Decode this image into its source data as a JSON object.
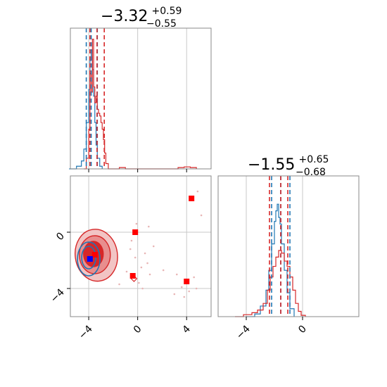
{
  "chart_data": {
    "type": "corner",
    "colors": {
      "blue": "#1f77b4",
      "red": "#d62728",
      "point_red": "#ff0000",
      "point_blue": "#0000ff",
      "grid": "#c8c8c8",
      "frame": "#888888"
    },
    "params": [
      {
        "title": {
          "main": "−3.32",
          "sup": "+0.59",
          "sub": "−0.55"
        },
        "range": [
          -5.5,
          6.0
        ],
        "quantiles_blue": [
          -4.2,
          -3.8,
          -3.3
        ],
        "quantiles_red": [
          -3.9,
          -3.32,
          -2.73
        ]
      },
      {
        "title": {
          "main": "−1.55",
          "sup": "+0.65",
          "sub": "−0.68"
        },
        "range": [
          -6.0,
          4.0
        ],
        "quantiles_blue": [
          -2.2,
          -1.55,
          -0.9
        ],
        "quantiles_red": [
          -2.35,
          -1.55,
          -1.05
        ]
      }
    ],
    "x_ticks": [
      {
        "v": -4,
        "label": "−4"
      },
      {
        "v": 0,
        "label": "0"
      },
      {
        "v": 4,
        "label": "4"
      }
    ],
    "y_ticks": [
      {
        "v": 0,
        "label": "0"
      },
      {
        "v": -4,
        "label": "−4"
      }
    ],
    "hist1_blue": [
      {
        "x": -5.6,
        "y": 0.0
      },
      {
        "x": -5.0,
        "y": 0.02
      },
      {
        "x": -4.6,
        "y": 0.06
      },
      {
        "x": -4.4,
        "y": 0.15
      },
      {
        "x": -4.2,
        "y": 0.35
      },
      {
        "x": -4.0,
        "y": 0.6
      },
      {
        "x": -3.9,
        "y": 0.82
      },
      {
        "x": -3.8,
        "y": 0.9
      },
      {
        "x": -3.7,
        "y": 0.75
      },
      {
        "x": -3.6,
        "y": 0.55
      },
      {
        "x": -3.5,
        "y": 0.35
      },
      {
        "x": -3.4,
        "y": 0.18
      },
      {
        "x": -3.3,
        "y": 0.08
      },
      {
        "x": -3.1,
        "y": 0.02
      },
      {
        "x": -2.9,
        "y": 0.0
      }
    ],
    "hist1_red": [
      {
        "x": -4.4,
        "y": 0.0
      },
      {
        "x": -4.2,
        "y": 0.08
      },
      {
        "x": -4.0,
        "y": 0.3
      },
      {
        "x": -3.9,
        "y": 0.72
      },
      {
        "x": -3.8,
        "y": 0.58
      },
      {
        "x": -3.7,
        "y": 0.98
      },
      {
        "x": -3.6,
        "y": 0.62
      },
      {
        "x": -3.5,
        "y": 0.5
      },
      {
        "x": -3.4,
        "y": 0.55
      },
      {
        "x": -3.3,
        "y": 0.45
      },
      {
        "x": -3.2,
        "y": 0.42
      },
      {
        "x": -3.1,
        "y": 0.4
      },
      {
        "x": -3.0,
        "y": 0.35
      },
      {
        "x": -2.9,
        "y": 0.3
      },
      {
        "x": -2.8,
        "y": 0.22
      },
      {
        "x": -2.7,
        "y": 0.12
      },
      {
        "x": -2.6,
        "y": 0.04
      },
      {
        "x": -2.4,
        "y": 0.0
      },
      {
        "x": -1.5,
        "y": 0.01
      },
      {
        "x": -1.0,
        "y": 0.0
      },
      {
        "x": 3.3,
        "y": 0.01
      },
      {
        "x": 3.8,
        "y": 0.015
      },
      {
        "x": 4.3,
        "y": 0.01
      },
      {
        "x": 4.8,
        "y": 0.0
      }
    ],
    "hist2_blue": [
      {
        "x": -4.0,
        "y": 0.0
      },
      {
        "x": -3.4,
        "y": 0.02
      },
      {
        "x": -3.0,
        "y": 0.08
      },
      {
        "x": -2.6,
        "y": 0.2
      },
      {
        "x": -2.4,
        "y": 0.35
      },
      {
        "x": -2.2,
        "y": 0.55
      },
      {
        "x": -2.0,
        "y": 0.72
      },
      {
        "x": -1.9,
        "y": 0.8
      },
      {
        "x": -1.8,
        "y": 0.85
      },
      {
        "x": -1.7,
        "y": 0.75
      },
      {
        "x": -1.6,
        "y": 0.7
      },
      {
        "x": -1.5,
        "y": 0.55
      },
      {
        "x": -1.3,
        "y": 0.35
      },
      {
        "x": -1.1,
        "y": 0.18
      },
      {
        "x": -0.9,
        "y": 0.06
      },
      {
        "x": -0.6,
        "y": 0.0
      }
    ],
    "hist2_red": [
      {
        "x": -4.8,
        "y": 0.0
      },
      {
        "x": -4.2,
        "y": 0.015
      },
      {
        "x": -3.6,
        "y": 0.03
      },
      {
        "x": -3.2,
        "y": 0.05
      },
      {
        "x": -2.8,
        "y": 0.1
      },
      {
        "x": -2.5,
        "y": 0.2
      },
      {
        "x": -2.3,
        "y": 0.3
      },
      {
        "x": -2.1,
        "y": 0.38
      },
      {
        "x": -1.9,
        "y": 0.45
      },
      {
        "x": -1.7,
        "y": 0.5
      },
      {
        "x": -1.5,
        "y": 0.48
      },
      {
        "x": -1.3,
        "y": 0.42
      },
      {
        "x": -1.1,
        "y": 0.38
      },
      {
        "x": -0.9,
        "y": 0.3
      },
      {
        "x": -0.7,
        "y": 0.2
      },
      {
        "x": -0.5,
        "y": 0.1
      },
      {
        "x": -0.3,
        "y": 0.04
      },
      {
        "x": -0.1,
        "y": 0.01
      },
      {
        "x": 0.2,
        "y": 0.0
      }
    ],
    "red_markers": [
      {
        "x": 4.4,
        "y": 2.4
      },
      {
        "x": -0.2,
        "y": 0.0
      },
      {
        "x": -0.4,
        "y": -3.1
      },
      {
        "x": 4.0,
        "y": -3.5
      },
      {
        "x": -3.5,
        "y": -1.6
      }
    ],
    "blue_markers": [
      {
        "x": -3.9,
        "y": -1.9
      }
    ],
    "scatter_points": [
      {
        "x": -0.6,
        "y": -1.2
      },
      {
        "x": -0.2,
        "y": -1.8
      },
      {
        "x": 0.3,
        "y": -2.5
      },
      {
        "x": 0.6,
        "y": -1.5
      },
      {
        "x": -0.9,
        "y": -2.8
      },
      {
        "x": 0.1,
        "y": -3.6
      },
      {
        "x": 0.8,
        "y": -2.2
      },
      {
        "x": -0.5,
        "y": -0.6
      },
      {
        "x": 0.4,
        "y": -4.0
      },
      {
        "x": 1.0,
        "y": -3.0
      },
      {
        "x": 3.2,
        "y": -3.0
      },
      {
        "x": 3.6,
        "y": -3.9
      },
      {
        "x": 4.2,
        "y": -4.2
      },
      {
        "x": 4.6,
        "y": -3.2
      },
      {
        "x": 3.8,
        "y": -4.6
      },
      {
        "x": 4.8,
        "y": -4.0
      },
      {
        "x": 5.2,
        "y": 1.2
      },
      {
        "x": 4.9,
        "y": 2.9
      },
      {
        "x": 0.9,
        "y": 0.4
      },
      {
        "x": -0.1,
        "y": 0.6
      },
      {
        "x": 1.3,
        "y": -1.0
      },
      {
        "x": 2.1,
        "y": -2.7
      },
      {
        "x": -1.5,
        "y": -3.7
      },
      {
        "x": 3.0,
        "y": -4.4
      }
    ]
  }
}
